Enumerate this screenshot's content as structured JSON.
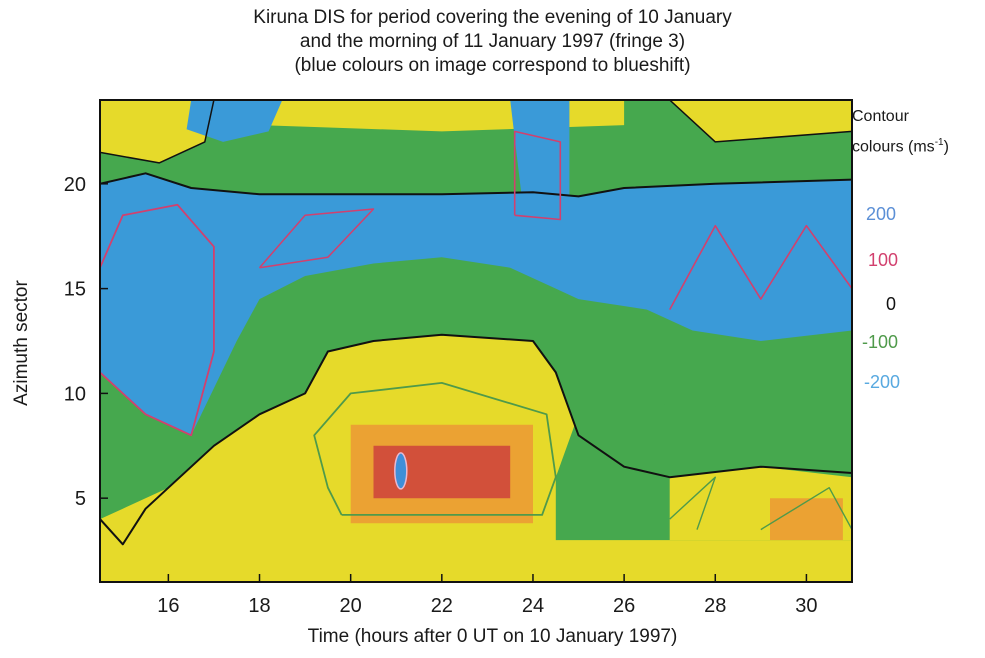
{
  "chart_data": {
    "type": "heatmap",
    "title": [
      "Kiruna DIS for period covering the evening of 10 January",
      "and the morning of 11 January 1997 (fringe 3)",
      "(blue colours on image correspond to blueshift)"
    ],
    "xlabel": "Time (hours after 0 UT on 10 January 1997)",
    "ylabel": "Azimuth sector",
    "xlim": [
      14.5,
      31
    ],
    "ylim": [
      1,
      24
    ],
    "x_ticks": [
      16,
      18,
      20,
      22,
      24,
      26,
      28,
      30
    ],
    "y_ticks": [
      5,
      10,
      15,
      20
    ],
    "legend": {
      "title_line1": "Contour",
      "title_line2": "colours (ms",
      "title_sup": "-1",
      "title_end": ")",
      "entries": [
        {
          "label": "200",
          "color": "#5b8fd6"
        },
        {
          "label": "100",
          "color": "#d2406e"
        },
        {
          "label": "0",
          "color": "#111111"
        },
        {
          "label": "-100",
          "color": "#4f9a4a"
        },
        {
          "label": "-200",
          "color": "#58a9e0"
        }
      ]
    },
    "colors": {
      "blue": "#3a9ad8",
      "green": "#46a84e",
      "yellow": "#e6da2a",
      "orange": "#eba233",
      "red": "#d2503a"
    },
    "regions": [
      {
        "name": "blueshift-band-evening",
        "color": "blue",
        "x": [
          14.5,
          18.5
        ],
        "y": [
          11,
          20
        ]
      },
      {
        "name": "blueshift-band-morning",
        "color": "blue",
        "x": [
          26.5,
          31
        ],
        "y": [
          13,
          20
        ]
      },
      {
        "name": "yellow-core",
        "color": "yellow",
        "x": [
          19.5,
          24.5
        ],
        "y": [
          2,
          11
        ]
      },
      {
        "name": "redshift-peak",
        "color": "orange",
        "x": [
          20.5,
          23.5
        ],
        "y": [
          5,
          8
        ]
      }
    ]
  }
}
